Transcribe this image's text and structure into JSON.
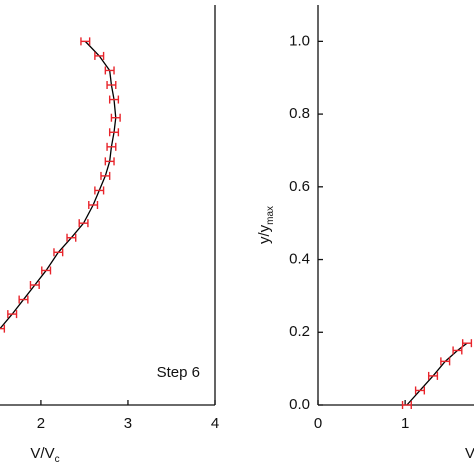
{
  "chart_data": [
    {
      "type": "line",
      "annotation": "Step 6",
      "xlabel": {
        "main": "V/V",
        "sub": "c"
      },
      "x": [
        2.51,
        2.67,
        2.79,
        2.81,
        2.84,
        2.86,
        2.84,
        2.81,
        2.79,
        2.74,
        2.67,
        2.6,
        2.49,
        2.35,
        2.2,
        2.06,
        1.93,
        1.8,
        1.67,
        1.53
      ],
      "values": [
        1.0,
        0.96,
        0.92,
        0.88,
        0.84,
        0.79,
        0.75,
        0.71,
        0.67,
        0.63,
        0.59,
        0.55,
        0.5,
        0.46,
        0.42,
        0.37,
        0.33,
        0.29,
        0.25,
        0.21
      ],
      "xerr": 0.05,
      "color": "#000000",
      "err_color": "#e8242b",
      "xlim": [
        1.53,
        4
      ],
      "xticks": [
        2,
        3,
        4
      ],
      "ylim": [
        0,
        1.1
      ]
    },
    {
      "type": "line",
      "ylabel": {
        "main": "y/y",
        "sub": "max"
      },
      "xlabel": {
        "main": "V"
      },
      "x": [
        1.02,
        1.17,
        1.32,
        1.46,
        1.6,
        1.71
      ],
      "values": [
        0,
        0.04,
        0.08,
        0.12,
        0.15,
        0.17
      ],
      "xerr": 0.05,
      "color": "#000000",
      "err_color": "#e8242b",
      "xlim": [
        0,
        1.79
      ],
      "xticks": [
        0,
        1
      ],
      "ylim": [
        0,
        1.1
      ],
      "yticks": [
        {
          "value": 0,
          "label": "0.0"
        },
        0.2,
        0.4,
        0.6,
        0.8,
        {
          "value": 1,
          "label": "1.0"
        }
      ]
    }
  ]
}
